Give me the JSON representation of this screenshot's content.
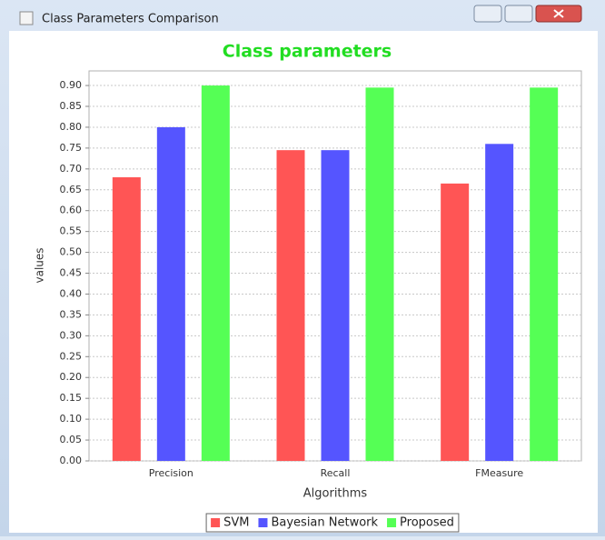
{
  "window_title": "Class Parameters Comparison",
  "chart_data": {
    "type": "bar",
    "title": "Class parameters",
    "title_color": "#22dd22",
    "x_label": "Algorithms",
    "y_label": "values",
    "categories": [
      "Precision",
      "Recall",
      "FMeasure"
    ],
    "series": [
      {
        "name": "SVM",
        "color": "#ff5555",
        "values": [
          0.68,
          0.745,
          0.665
        ]
      },
      {
        "name": "Bayesian Network",
        "color": "#5555ff",
        "values": [
          0.8,
          0.745,
          0.76
        ]
      },
      {
        "name": "Proposed",
        "color": "#55ff55",
        "values": [
          0.9,
          0.895,
          0.895
        ]
      }
    ],
    "ylim": [
      0,
      0.935
    ],
    "yticks": [
      {
        "value": 0,
        "label": "0.00"
      },
      {
        "value": 0.05,
        "label": "0.05"
      },
      {
        "value": 0.1,
        "label": "0.10"
      },
      {
        "value": 0.15,
        "label": "0.15"
      },
      {
        "value": 0.2,
        "label": "0.20"
      },
      {
        "value": 0.25,
        "label": "0.25"
      },
      {
        "value": 0.3,
        "label": "0.30"
      },
      {
        "value": 0.35,
        "label": "0.35"
      },
      {
        "value": 0.4,
        "label": "0.40"
      },
      {
        "value": 0.45,
        "label": "0.45"
      },
      {
        "value": 0.5,
        "label": "0.50"
      },
      {
        "value": 0.55,
        "label": "0.55"
      },
      {
        "value": 0.6,
        "label": "0.60"
      },
      {
        "value": 0.65,
        "label": "0.65"
      },
      {
        "value": 0.7,
        "label": "0.70"
      },
      {
        "value": 0.75,
        "label": "0.75"
      },
      {
        "value": 0.8,
        "label": "0.80"
      },
      {
        "value": 0.85,
        "label": "0.85"
      },
      {
        "value": 0.9,
        "label": "0.90"
      }
    ],
    "grid": true,
    "legend": "bottom"
  }
}
